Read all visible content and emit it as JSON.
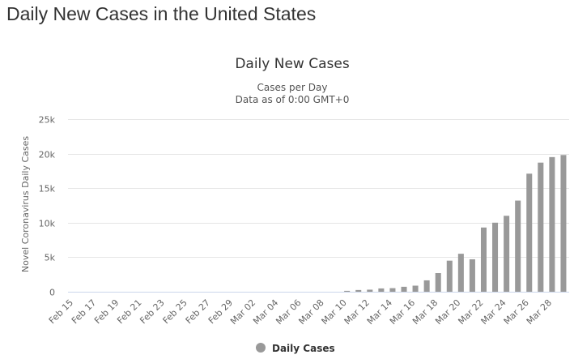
{
  "page": {
    "heading": "Daily New Cases in the United States"
  },
  "chart_data": {
    "type": "bar",
    "title": "Daily New Cases",
    "subtitle": "Cases per Day",
    "subtitle2": "Data as of 0:00 GMT+0",
    "xlabel": "",
    "ylabel": "Novel Coronavirus Daily Cases",
    "ylim": [
      0,
      25000
    ],
    "yticks": [
      0,
      5000,
      10000,
      15000,
      20000,
      25000
    ],
    "ytick_labels": [
      "0",
      "5k",
      "10k",
      "15k",
      "20k",
      "25k"
    ],
    "grid": true,
    "legend": "bottom-center",
    "bar_color": "#999999",
    "categories": [
      "Feb 15",
      "Feb 16",
      "Feb 17",
      "Feb 18",
      "Feb 19",
      "Feb 20",
      "Feb 21",
      "Feb 22",
      "Feb 23",
      "Feb 24",
      "Feb 25",
      "Feb 26",
      "Feb 27",
      "Feb 28",
      "Feb 29",
      "Mar 01",
      "Mar 02",
      "Mar 03",
      "Mar 04",
      "Mar 05",
      "Mar 06",
      "Mar 07",
      "Mar 08",
      "Mar 09",
      "Mar 10",
      "Mar 11",
      "Mar 12",
      "Mar 13",
      "Mar 14",
      "Mar 15",
      "Mar 16",
      "Mar 17",
      "Mar 18",
      "Mar 19",
      "Mar 20",
      "Mar 21",
      "Mar 22",
      "Mar 23",
      "Mar 24",
      "Mar 25",
      "Mar 26",
      "Mar 27",
      "Mar 28",
      "Mar 29"
    ],
    "tick_labels": [
      "Feb 15",
      "Feb 17",
      "Feb 19",
      "Feb 21",
      "Feb 23",
      "Feb 25",
      "Feb 27",
      "Feb 29",
      "Mar 02",
      "Mar 04",
      "Mar 06",
      "Mar 08",
      "Mar 10",
      "Mar 12",
      "Mar 14",
      "Mar 16",
      "Mar 18",
      "Mar 20",
      "Mar 22",
      "Mar 24",
      "Mar 26",
      "Mar 28"
    ],
    "series": [
      {
        "name": "Daily Cases",
        "values": [
          0,
          0,
          0,
          0,
          0,
          0,
          0,
          0,
          0,
          0,
          0,
          0,
          0,
          0,
          0,
          0,
          0,
          0,
          0,
          0,
          0,
          0,
          0,
          0,
          130,
          250,
          300,
          480,
          520,
          720,
          880,
          1650,
          2700,
          4500,
          5500,
          4700,
          9300,
          10000,
          11000,
          13200,
          17100,
          18700,
          19500,
          19800
        ]
      }
    ]
  }
}
